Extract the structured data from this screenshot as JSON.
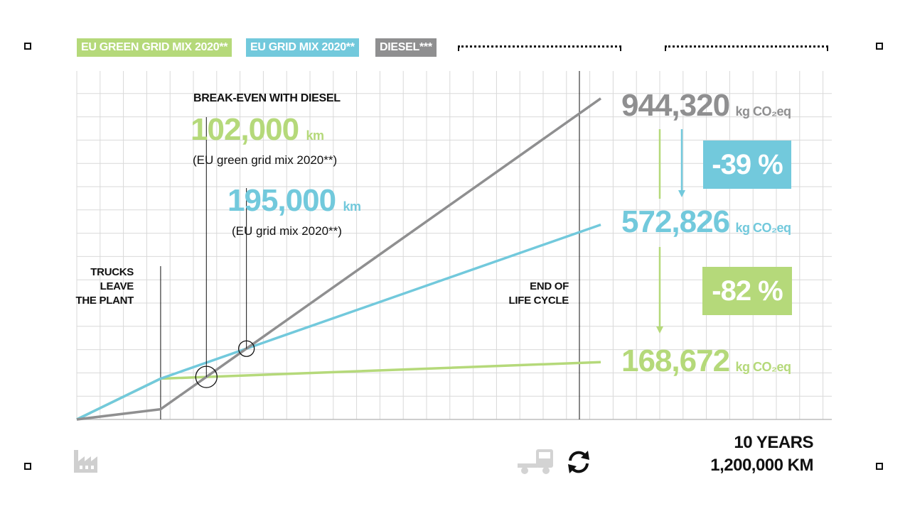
{
  "colors": {
    "green": "#b5d97a",
    "blue": "#72c9dc",
    "gray": "#8f8f90",
    "grid": "#d9d9d9",
    "ink": "#111111"
  },
  "legend": [
    {
      "label": "EU GREEN GRID MIX 2020**",
      "color": "#b5d97a"
    },
    {
      "label": "EU GRID MIX 2020**",
      "color": "#72c9dc"
    },
    {
      "label": "DIESEL***",
      "color": "#8f8f90"
    }
  ],
  "annotations": {
    "break_even_title": "BREAK-EVEN WITH DIESEL",
    "green_break_even": {
      "value": "102,000",
      "unit": "km",
      "note": "(EU green grid mix 2020**)"
    },
    "blue_break_even": {
      "value": "195,000",
      "unit": "km",
      "note": "(EU grid mix 2020**)"
    },
    "trucks_leave": [
      "TRUCKS",
      "LEAVE",
      "THE PLANT"
    ],
    "end_of_life": [
      "END OF",
      "LIFE CYCLE"
    ]
  },
  "totals": {
    "diesel": {
      "value": "944,320",
      "unit": "kg CO₂eq"
    },
    "grid": {
      "value": "572,826",
      "unit": "kg CO₂eq"
    },
    "green": {
      "value": "168,672",
      "unit": "kg CO₂eq"
    },
    "reduction_grid": "-39 %",
    "reduction_green": "-82 %"
  },
  "footer": {
    "line1": "10 YEARS",
    "line2": "1,200,000 KM"
  },
  "icons": {
    "start": "factory-icon",
    "end": "truck-icon",
    "cycle": "recycle-arrows-icon"
  },
  "chart_data": {
    "type": "line",
    "xlabel": "",
    "ylabel": "",
    "xlim": [
      0,
      1
    ],
    "ylim": [
      0,
      1000000
    ],
    "grid": true,
    "legend_position": "top-left",
    "series": [
      {
        "name": "DIESEL***",
        "color": "#8f8f90",
        "x": [
          0,
          0.16,
          1
        ],
        "y": [
          0,
          30000,
          944320
        ]
      },
      {
        "name": "EU GRID MIX 2020**",
        "color": "#72c9dc",
        "x": [
          0,
          0.16,
          1
        ],
        "y": [
          0,
          120000,
          572826
        ]
      },
      {
        "name": "EU GREEN GRID MIX 2020**",
        "color": "#b5d97a",
        "x": [
          0,
          0.16,
          1
        ],
        "y": [
          0,
          120000,
          168672
        ]
      }
    ],
    "break_even_points": [
      {
        "series": "EU GREEN GRID MIX 2020**",
        "label": "102,000 km"
      },
      {
        "series": "EU GRID MIX 2020**",
        "label": "195,000 km"
      }
    ]
  }
}
